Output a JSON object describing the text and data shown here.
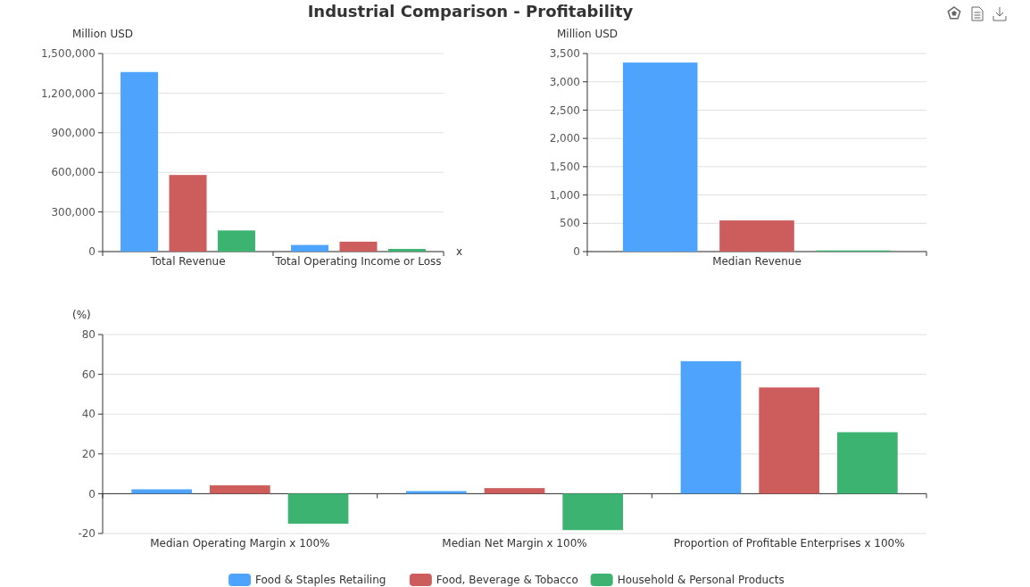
{
  "chart_data": [
    {
      "type": "bar",
      "title": "Industrial Comparison - Profitability",
      "ylabel": "Million USD",
      "xlabel": "x",
      "categories": [
        "Total Revenue",
        "Total Operating Income or Loss"
      ],
      "series": [
        {
          "color": "#4ea3fd",
          "values": [
            1360000,
            50000
          ]
        },
        {
          "color": "#cd5c5c",
          "values": [
            580000,
            75000
          ]
        },
        {
          "color": "#3cb371",
          "values": [
            160000,
            20000
          ]
        }
      ],
      "ylim": [
        0,
        1500000
      ],
      "yticks": [
        0,
        {
          "value": 300000,
          "label": "300,000"
        },
        {
          "value": 600000,
          "label": "600,000"
        },
        {
          "value": 900000,
          "label": "900,000"
        },
        {
          "value": 1200000,
          "label": "1,200,000"
        },
        {
          "value": 1500000,
          "label": "1,500,000"
        }
      ],
      "grid": "y"
    },
    {
      "type": "bar",
      "ylabel": "Million USD",
      "categories": [
        "Median Revenue"
      ],
      "series": [
        {
          "color": "#4ea3fd",
          "values": [
            3340
          ]
        },
        {
          "color": "#cd5c5c",
          "values": [
            550
          ]
        },
        {
          "color": "#3cb371",
          "values": [
            20
          ]
        }
      ],
      "ylim": [
        0,
        3500
      ],
      "yticks": [
        0,
        500,
        {
          "value": 1000,
          "label": "1,000"
        },
        {
          "value": 1500,
          "label": "1,500"
        },
        {
          "value": 2000,
          "label": "2,000"
        },
        {
          "value": 2500,
          "label": "2,500"
        },
        {
          "value": 3000,
          "label": "3,000"
        },
        {
          "value": 3500,
          "label": "3,500"
        }
      ],
      "grid": "y"
    },
    {
      "type": "bar",
      "ylabel": "(%)",
      "categories": [
        "Median Operating Margin x 100%",
        "Median Net Margin x 100%",
        "Proportion of Profitable Enterprises x 100%"
      ],
      "series": [
        {
          "name": "Food & Staples Retailing",
          "color": "#4ea3fd",
          "values": [
            2.2,
            1.3,
            66.6
          ]
        },
        {
          "name": "Food, Beverage & Tobacco",
          "color": "#cd5c5c",
          "values": [
            4.2,
            2.8,
            53.4
          ]
        },
        {
          "name": "Household & Personal Products",
          "color": "#3cb371",
          "values": [
            -15.1,
            -18.3,
            30.9
          ]
        }
      ],
      "ylim": [
        -20,
        80
      ],
      "yticks": [
        -20,
        0,
        20,
        40,
        60,
        80
      ],
      "grid": "y",
      "legend": "bottom"
    }
  ]
}
